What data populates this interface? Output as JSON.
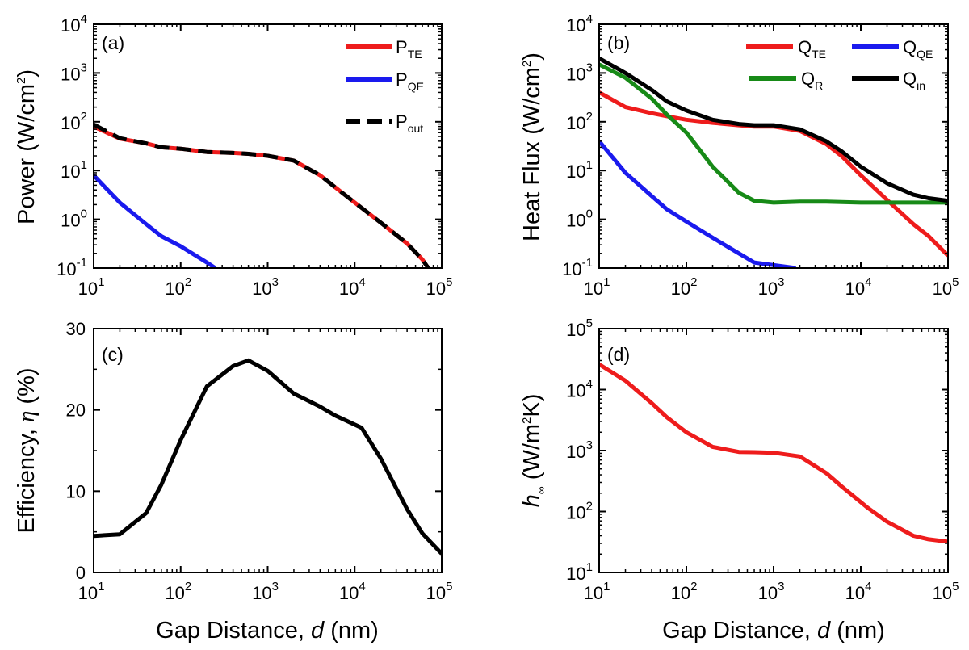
{
  "colors": {
    "red": "#ee1c1c",
    "blue": "#1a1aee",
    "green": "#178a17",
    "black": "#000000"
  },
  "chart_data": [
    {
      "panel": "(a)",
      "type": "line",
      "xlabel": "",
      "ylabel": "Power (W/cm²)",
      "x_scale": "log",
      "y_scale": "log",
      "xlim": [
        10,
        100000
      ],
      "ylim": [
        0.1,
        10000
      ],
      "legend_placement": "top-right",
      "series": [
        {
          "name": "P_TE",
          "color": "red",
          "style": "solid",
          "x": [
            10,
            20,
            40,
            60,
            100,
            200,
            400,
            600,
            1000,
            2000,
            4000,
            6000,
            10000,
            20000,
            40000,
            60000,
            70000
          ],
          "y": [
            80,
            45,
            36,
            30,
            28,
            24,
            23,
            22,
            20,
            16,
            8,
            4.5,
            2.2,
            0.85,
            0.32,
            0.15,
            0.1
          ]
        },
        {
          "name": "P_QE",
          "color": "blue",
          "style": "solid",
          "x": [
            10,
            20,
            40,
            60,
            100,
            200,
            250
          ],
          "y": [
            8,
            2.2,
            0.8,
            0.45,
            0.28,
            0.13,
            0.1
          ]
        },
        {
          "name": "P_out",
          "color": "black",
          "style": "dashed",
          "x": [
            10,
            20,
            40,
            60,
            100,
            200,
            400,
            600,
            1000,
            2000,
            4000,
            6000,
            10000,
            20000,
            40000,
            60000,
            70000
          ],
          "y": [
            88,
            46,
            36,
            30,
            28,
            24,
            23,
            22,
            20,
            16,
            8,
            4.5,
            2.2,
            0.85,
            0.32,
            0.15,
            0.1
          ]
        }
      ]
    },
    {
      "panel": "(b)",
      "type": "line",
      "xlabel": "",
      "ylabel": "Heat Flux (W/cm²)",
      "x_scale": "log",
      "y_scale": "log",
      "xlim": [
        10,
        100000
      ],
      "ylim": [
        0.1,
        10000
      ],
      "legend_placement": "top-right",
      "series": [
        {
          "name": "Q_TE",
          "color": "red",
          "x": [
            10,
            20,
            40,
            60,
            100,
            200,
            400,
            600,
            1000,
            2000,
            4000,
            6000,
            10000,
            20000,
            40000,
            60000,
            100000
          ],
          "y": [
            400,
            200,
            150,
            130,
            110,
            95,
            85,
            80,
            80,
            65,
            35,
            20,
            8,
            2.5,
            0.8,
            0.45,
            0.18
          ]
        },
        {
          "name": "Q_QE",
          "color": "blue",
          "x": [
            10,
            20,
            40,
            60,
            100,
            200,
            400,
            600,
            1000,
            1800
          ],
          "y": [
            40,
            9,
            3,
            1.6,
            0.9,
            0.42,
            0.2,
            0.13,
            0.115,
            0.1
          ]
        },
        {
          "name": "Q_R",
          "color": "green",
          "x": [
            10,
            20,
            40,
            60,
            100,
            200,
            400,
            600,
            1000,
            2000,
            4000,
            10000,
            20000,
            40000,
            100000
          ],
          "y": [
            1500,
            800,
            300,
            140,
            60,
            12,
            3.5,
            2.4,
            2.2,
            2.3,
            2.3,
            2.2,
            2.2,
            2.2,
            2.2
          ]
        },
        {
          "name": "Q_in",
          "color": "black",
          "x": [
            10,
            20,
            40,
            60,
            100,
            200,
            400,
            600,
            1000,
            2000,
            4000,
            6000,
            10000,
            20000,
            40000,
            60000,
            100000
          ],
          "y": [
            2000,
            1000,
            450,
            260,
            170,
            110,
            90,
            85,
            85,
            70,
            40,
            25,
            12,
            5.5,
            3.2,
            2.7,
            2.4
          ]
        }
      ]
    },
    {
      "panel": "(c)",
      "type": "line",
      "xlabel": "Gap Distance, d (nm)",
      "ylabel": "Efficiency, η (%)",
      "x_scale": "log",
      "y_scale": "linear",
      "xlim": [
        10,
        100000
      ],
      "ylim": [
        0,
        30
      ],
      "series": [
        {
          "color": "black",
          "x": [
            10,
            20,
            40,
            60,
            100,
            200,
            400,
            600,
            1000,
            2000,
            4000,
            6000,
            12000,
            20000,
            40000,
            60000,
            100000
          ],
          "y": [
            4.5,
            4.7,
            7.3,
            10.8,
            16.3,
            22.9,
            25.4,
            26.1,
            24.8,
            22.0,
            20.4,
            19.3,
            17.8,
            14.0,
            7.8,
            4.8,
            2.3
          ]
        }
      ]
    },
    {
      "panel": "(d)",
      "type": "line",
      "xlabel": "Gap Distance, d (nm)",
      "ylabel": "h∞ (W/m²K)",
      "x_scale": "log",
      "y_scale": "log",
      "xlim": [
        10,
        100000
      ],
      "ylim": [
        10,
        100000
      ],
      "series": [
        {
          "color": "red",
          "x": [
            10,
            20,
            40,
            60,
            100,
            200,
            400,
            600,
            1000,
            2000,
            4000,
            6000,
            12000,
            20000,
            40000,
            60000,
            100000
          ],
          "y": [
            26000,
            14000,
            6000,
            3500,
            2000,
            1150,
            950,
            940,
            920,
            800,
            430,
            260,
            115,
            68,
            40,
            35,
            32
          ]
        }
      ]
    }
  ],
  "panels": {
    "a": {
      "label": "(a)"
    },
    "b": {
      "label": "(b)"
    },
    "c": {
      "label": "(c)"
    },
    "d": {
      "label": "(d)"
    }
  },
  "legend_a": [
    {
      "main": "P",
      "sub": "TE"
    },
    {
      "main": "P",
      "sub": "QE"
    },
    {
      "main": "P",
      "sub": "out"
    }
  ],
  "legend_b": [
    {
      "main": "Q",
      "sub": "TE"
    },
    {
      "main": "Q",
      "sub": "QE"
    },
    {
      "main": "Q",
      "sub": "R"
    },
    {
      "main": "Q",
      "sub": "in"
    }
  ],
  "axes": {
    "x_ticks_log": [
      {
        "base": "10",
        "exp": "1"
      },
      {
        "base": "10",
        "exp": "2"
      },
      {
        "base": "10",
        "exp": "3"
      },
      {
        "base": "10",
        "exp": "4"
      },
      {
        "base": "10",
        "exp": "5"
      }
    ],
    "y_ticks_ab": [
      {
        "base": "10",
        "exp": "-1"
      },
      {
        "base": "10",
        "exp": "0"
      },
      {
        "base": "10",
        "exp": "1"
      },
      {
        "base": "10",
        "exp": "2"
      },
      {
        "base": "10",
        "exp": "3"
      },
      {
        "base": "10",
        "exp": "4"
      }
    ],
    "y_ticks_c": [
      "0",
      "10",
      "20",
      "30"
    ],
    "y_ticks_d": [
      {
        "base": "10",
        "exp": "1"
      },
      {
        "base": "10",
        "exp": "2"
      },
      {
        "base": "10",
        "exp": "3"
      },
      {
        "base": "10",
        "exp": "4"
      },
      {
        "base": "10",
        "exp": "5"
      }
    ],
    "ylabel_a": {
      "pre": "Power (W/cm",
      "sup": "2",
      "post": ")"
    },
    "ylabel_b": {
      "pre": "Heat Flux (W/cm",
      "sup": "2",
      "post": ")"
    },
    "ylabel_c": {
      "pre": "Efficiency, ",
      "ital": "η",
      "post": " (%)"
    },
    "ylabel_d": {
      "h": "h",
      "inf": "∞",
      "pre": " (W/m",
      "sup": "2",
      "post": "K)"
    },
    "xlabel": {
      "pre": "Gap Distance, ",
      "ital": "d",
      "post": " (nm)"
    }
  }
}
